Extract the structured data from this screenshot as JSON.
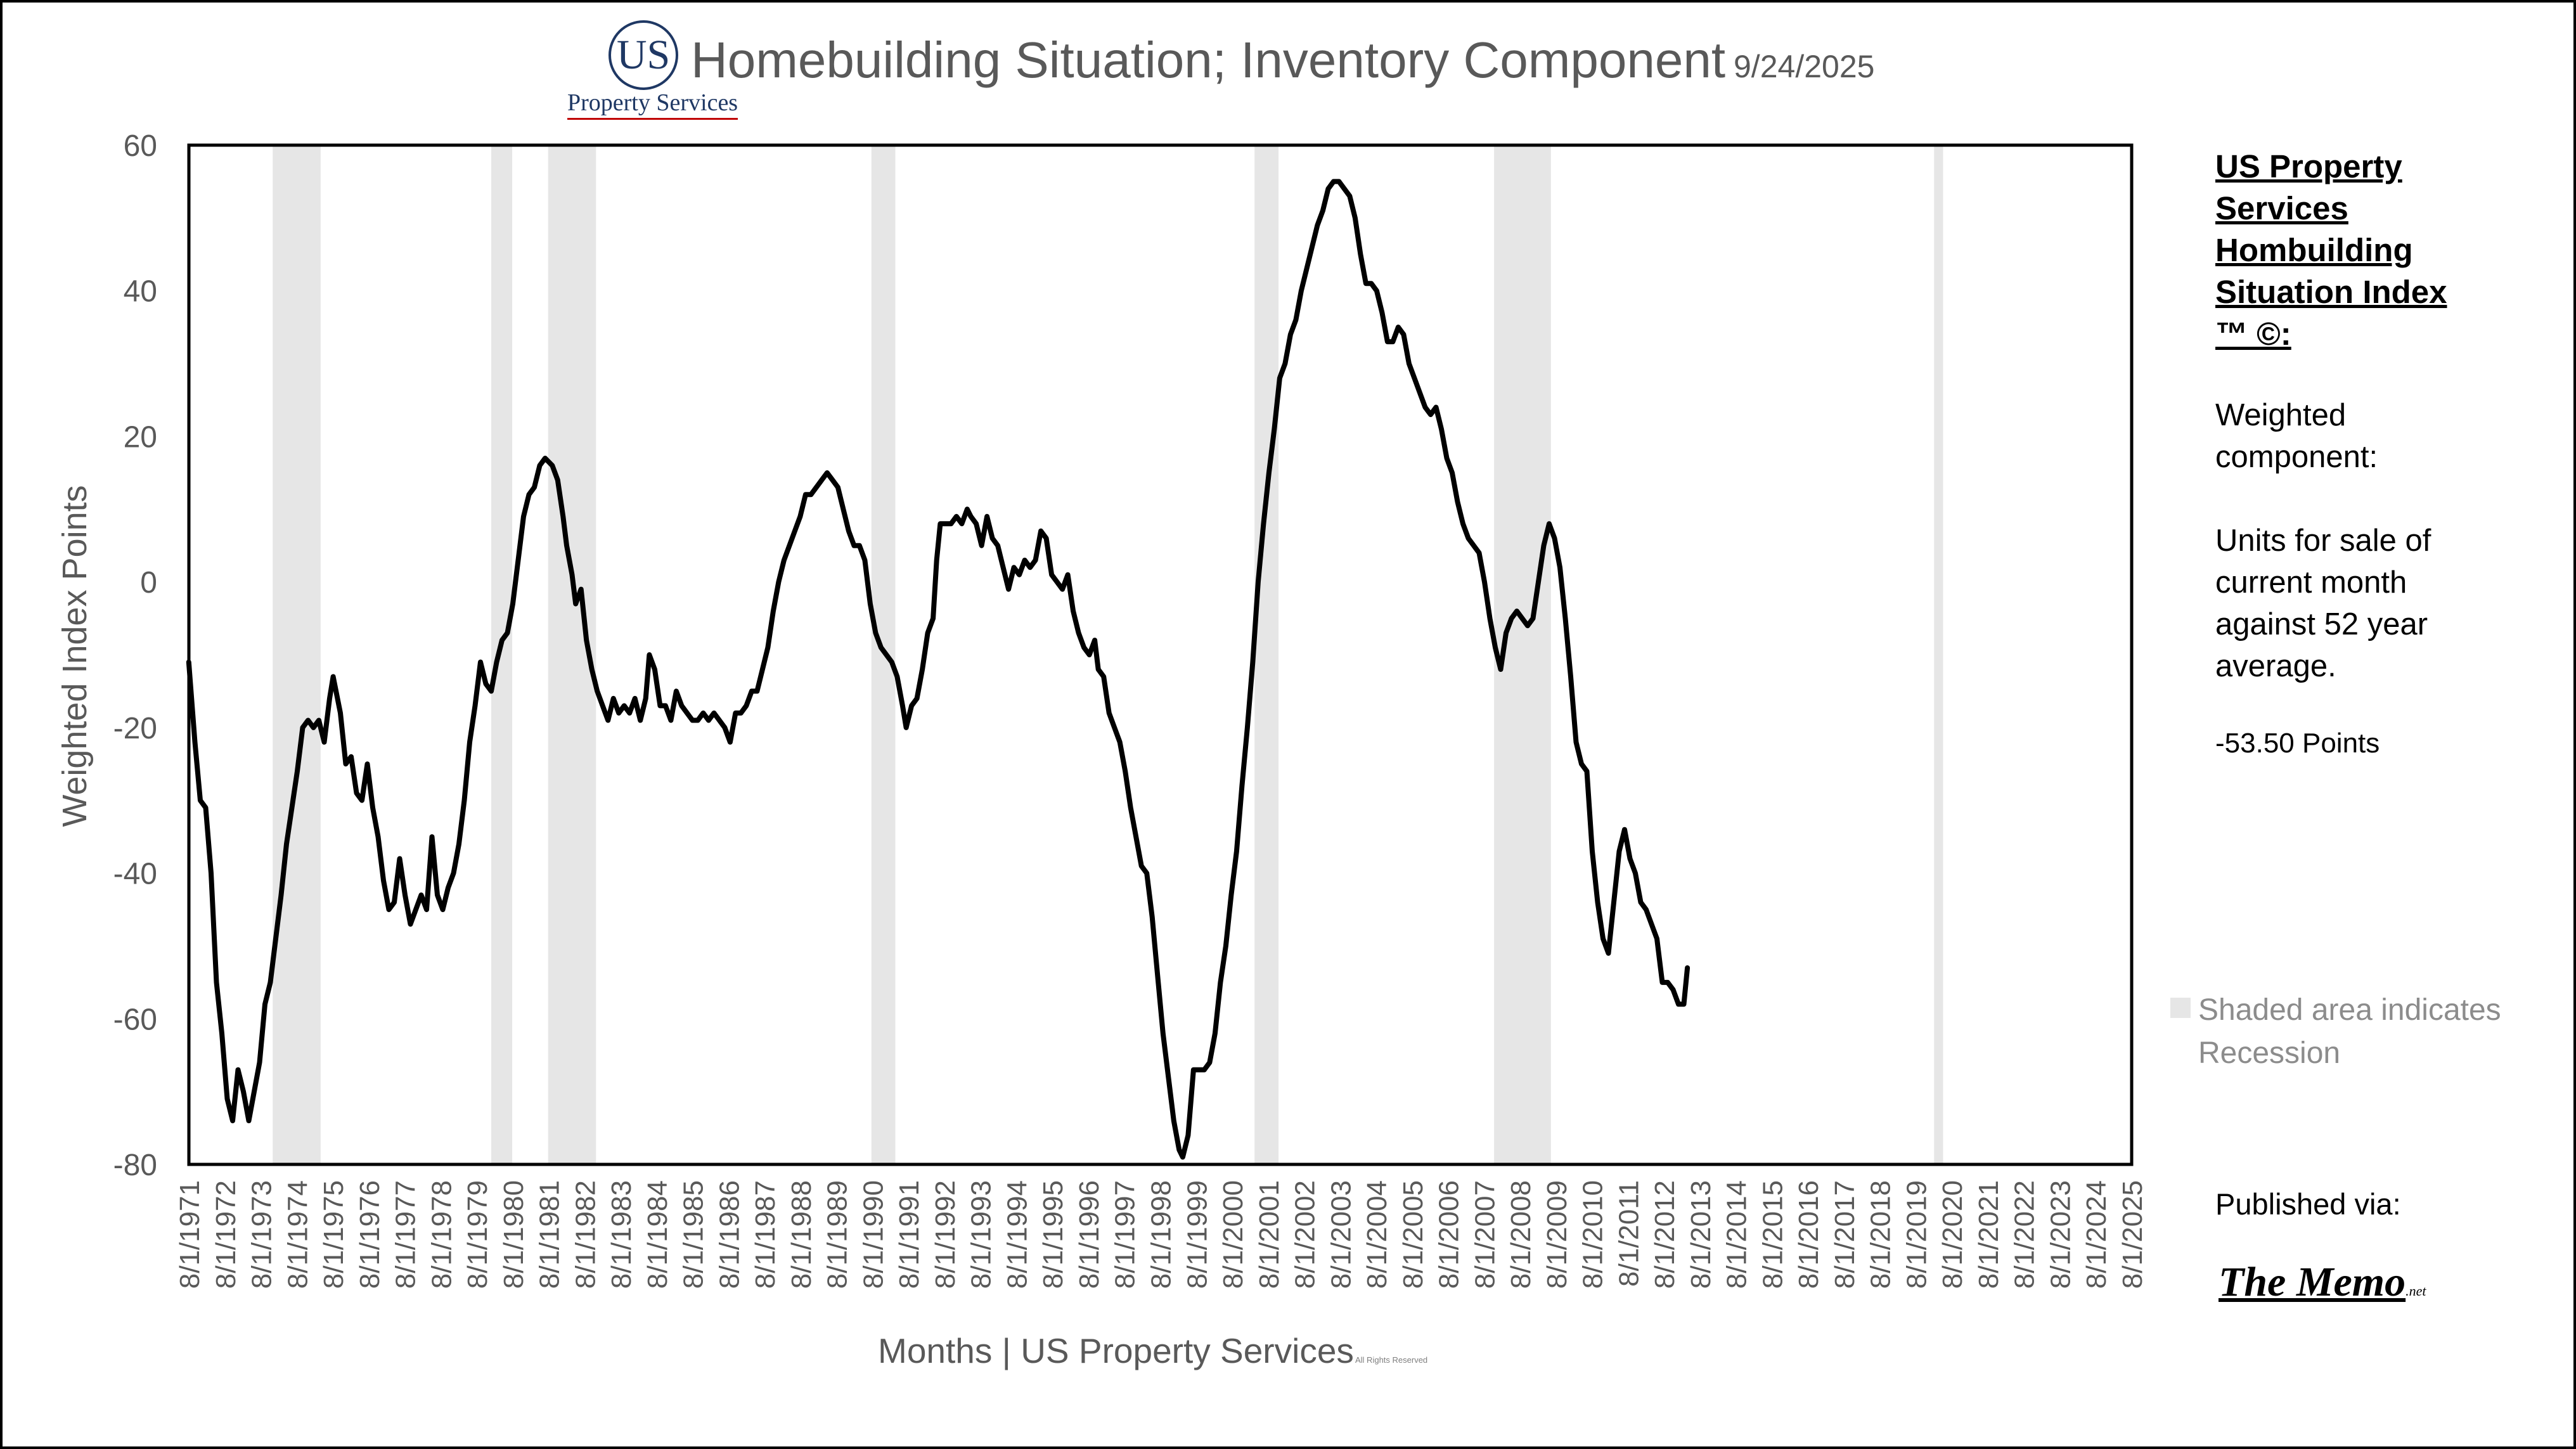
{
  "logo": {
    "mark": "US",
    "subtitle": "Property Services"
  },
  "sidebar": {
    "heading": "US Property Services Hombuilding Situation Index ™ ©:",
    "description_1": "Weighted component:",
    "description_2": "Units for sale of current month against 52 year average.",
    "current_value": "-53.50 Points",
    "published_label": "Published via:",
    "publisher": "The Memo",
    "publisher_suffix": ".net"
  },
  "legend": {
    "text": "Shaded area indicates Recession"
  },
  "colors": {
    "line": "#000000",
    "recession": "#e6e6e6",
    "axis_text": "#595959",
    "logo": "#1f3864"
  },
  "chart_data": {
    "type": "line",
    "title": "Homebuilding Situation; Inventory Component",
    "date": "9/24/2025",
    "xlabel": "Months | US Property Services",
    "xlabel_note": "All Rights Reserved",
    "ylabel": "Weighted Index Points",
    "ylim": [
      -80,
      60
    ],
    "yticks": [
      -80,
      -60,
      -40,
      -20,
      0,
      20,
      40,
      60
    ],
    "xlim": [
      1971.583,
      2025.667
    ],
    "x_tick_labels": [
      "8/1/1971",
      "8/1/1972",
      "8/1/1973",
      "8/1/1974",
      "8/1/1975",
      "8/1/1976",
      "8/1/1977",
      "8/1/1978",
      "8/1/1979",
      "8/1/1980",
      "8/1/1981",
      "8/1/1982",
      "8/1/1983",
      "8/1/1984",
      "8/1/1985",
      "8/1/1986",
      "8/1/1987",
      "8/1/1988",
      "8/1/1989",
      "8/1/1990",
      "8/1/1991",
      "8/1/1992",
      "8/1/1993",
      "8/1/1994",
      "8/1/1995",
      "8/1/1996",
      "8/1/1997",
      "8/1/1998",
      "8/1/1999",
      "8/1/2000",
      "8/1/2001",
      "8/1/2002",
      "8/1/2003",
      "8/1/2004",
      "8/1/2005",
      "8/1/2006",
      "8/1/2007",
      "8/1/2008",
      "8/1/2009",
      "8/1/2010",
      "8/1/2011",
      "8/1/2012",
      "8/1/2013",
      "8/1/2014",
      "8/1/2015",
      "8/1/2016",
      "8/1/2017",
      "8/1/2018",
      "8/1/2019",
      "8/1/2020",
      "8/1/2021",
      "8/1/2022",
      "8/1/2023",
      "8/1/2024",
      "8/1/2025"
    ],
    "grid": false,
    "legend_placement": "right",
    "recessions": [
      [
        1973.917,
        1975.25
      ],
      [
        1980.0,
        1980.583
      ],
      [
        1981.583,
        1982.917
      ],
      [
        1990.583,
        1991.25
      ],
      [
        2001.25,
        2001.917
      ],
      [
        2007.917,
        2009.5
      ],
      [
        2020.167,
        2020.417
      ]
    ],
    "series": [
      {
        "values": [
          [
            1971.58,
            -11
          ],
          [
            1971.75,
            -22
          ],
          [
            1971.9,
            -30
          ],
          [
            1972.05,
            -31
          ],
          [
            1972.2,
            -40
          ],
          [
            1972.35,
            -55
          ],
          [
            1972.5,
            -62
          ],
          [
            1972.65,
            -71
          ],
          [
            1972.8,
            -74
          ],
          [
            1972.95,
            -67
          ],
          [
            1973.1,
            -70
          ],
          [
            1973.25,
            -74
          ],
          [
            1973.4,
            -70
          ],
          [
            1973.55,
            -66
          ],
          [
            1973.7,
            -58
          ],
          [
            1973.85,
            -55
          ],
          [
            1974.0,
            -49
          ],
          [
            1974.15,
            -43
          ],
          [
            1974.3,
            -36
          ],
          [
            1974.45,
            -31
          ],
          [
            1974.6,
            -26
          ],
          [
            1974.75,
            -20
          ],
          [
            1974.9,
            -19
          ],
          [
            1975.05,
            -20
          ],
          [
            1975.2,
            -19
          ],
          [
            1975.35,
            -22
          ],
          [
            1975.5,
            -16
          ],
          [
            1975.6,
            -13
          ],
          [
            1975.8,
            -18
          ],
          [
            1975.95,
            -25
          ],
          [
            1976.1,
            -24
          ],
          [
            1976.25,
            -29
          ],
          [
            1976.4,
            -30
          ],
          [
            1976.55,
            -25
          ],
          [
            1976.7,
            -31
          ],
          [
            1976.85,
            -35
          ],
          [
            1977.0,
            -41
          ],
          [
            1977.15,
            -45
          ],
          [
            1977.3,
            -44
          ],
          [
            1977.45,
            -38
          ],
          [
            1977.6,
            -43
          ],
          [
            1977.75,
            -47
          ],
          [
            1977.9,
            -45
          ],
          [
            1978.05,
            -43
          ],
          [
            1978.2,
            -45
          ],
          [
            1978.35,
            -35
          ],
          [
            1978.5,
            -43
          ],
          [
            1978.65,
            -45
          ],
          [
            1978.8,
            -42
          ],
          [
            1978.95,
            -40
          ],
          [
            1979.1,
            -36
          ],
          [
            1979.25,
            -30
          ],
          [
            1979.4,
            -22
          ],
          [
            1979.55,
            -17
          ],
          [
            1979.7,
            -11
          ],
          [
            1979.85,
            -14
          ],
          [
            1980.0,
            -15
          ],
          [
            1980.15,
            -11
          ],
          [
            1980.3,
            -8
          ],
          [
            1980.45,
            -7
          ],
          [
            1980.6,
            -3
          ],
          [
            1980.75,
            3
          ],
          [
            1980.9,
            9
          ],
          [
            1981.05,
            12
          ],
          [
            1981.2,
            13
          ],
          [
            1981.35,
            16
          ],
          [
            1981.5,
            17
          ],
          [
            1981.7,
            16
          ],
          [
            1981.85,
            14
          ],
          [
            1982.0,
            9
          ],
          [
            1982.1,
            5
          ],
          [
            1982.25,
            1
          ],
          [
            1982.35,
            -3
          ],
          [
            1982.5,
            -1
          ],
          [
            1982.65,
            -8
          ],
          [
            1982.8,
            -12
          ],
          [
            1982.95,
            -15
          ],
          [
            1983.1,
            -17
          ],
          [
            1983.25,
            -19
          ],
          [
            1983.4,
            -16
          ],
          [
            1983.55,
            -18
          ],
          [
            1983.7,
            -17
          ],
          [
            1983.85,
            -18
          ],
          [
            1984.0,
            -16
          ],
          [
            1984.15,
            -19
          ],
          [
            1984.3,
            -16
          ],
          [
            1984.4,
            -10
          ],
          [
            1984.55,
            -12
          ],
          [
            1984.7,
            -17
          ],
          [
            1984.85,
            -17
          ],
          [
            1985.0,
            -19
          ],
          [
            1985.15,
            -15
          ],
          [
            1985.3,
            -17
          ],
          [
            1985.45,
            -18
          ],
          [
            1985.6,
            -19
          ],
          [
            1985.75,
            -19
          ],
          [
            1985.9,
            -18
          ],
          [
            1986.05,
            -19
          ],
          [
            1986.2,
            -18
          ],
          [
            1986.35,
            -19
          ],
          [
            1986.5,
            -20
          ],
          [
            1986.65,
            -22
          ],
          [
            1986.8,
            -18
          ],
          [
            1986.95,
            -18
          ],
          [
            1987.1,
            -17
          ],
          [
            1987.25,
            -15
          ],
          [
            1987.4,
            -15
          ],
          [
            1987.55,
            -12
          ],
          [
            1987.7,
            -9
          ],
          [
            1987.85,
            -4
          ],
          [
            1988.0,
            0
          ],
          [
            1988.15,
            3
          ],
          [
            1988.3,
            5
          ],
          [
            1988.45,
            7
          ],
          [
            1988.6,
            9
          ],
          [
            1988.75,
            12
          ],
          [
            1988.9,
            12
          ],
          [
            1989.05,
            13
          ],
          [
            1989.2,
            14
          ],
          [
            1989.35,
            15
          ],
          [
            1989.5,
            14
          ],
          [
            1989.65,
            13
          ],
          [
            1989.8,
            10
          ],
          [
            1989.95,
            7
          ],
          [
            1990.1,
            5
          ],
          [
            1990.25,
            5
          ],
          [
            1990.4,
            3
          ],
          [
            1990.55,
            -3
          ],
          [
            1990.7,
            -7
          ],
          [
            1990.85,
            -9
          ],
          [
            1991.0,
            -10
          ],
          [
            1991.15,
            -11
          ],
          [
            1991.3,
            -13
          ],
          [
            1991.45,
            -17
          ],
          [
            1991.55,
            -20
          ],
          [
            1991.7,
            -17
          ],
          [
            1991.85,
            -16
          ],
          [
            1992.0,
            -12
          ],
          [
            1992.15,
            -7
          ],
          [
            1992.3,
            -5
          ],
          [
            1992.4,
            3
          ],
          [
            1992.5,
            8
          ],
          [
            1992.65,
            8
          ],
          [
            1992.8,
            8
          ],
          [
            1992.95,
            9
          ],
          [
            1993.1,
            8
          ],
          [
            1993.25,
            10
          ],
          [
            1993.35,
            9
          ],
          [
            1993.5,
            8
          ],
          [
            1993.65,
            5
          ],
          [
            1993.8,
            9
          ],
          [
            1993.95,
            6
          ],
          [
            1994.1,
            5
          ],
          [
            1994.25,
            2
          ],
          [
            1994.4,
            -1
          ],
          [
            1994.55,
            2
          ],
          [
            1994.7,
            1
          ],
          [
            1994.85,
            3
          ],
          [
            1995.0,
            2
          ],
          [
            1995.15,
            3
          ],
          [
            1995.3,
            7
          ],
          [
            1995.45,
            6
          ],
          [
            1995.6,
            1
          ],
          [
            1995.75,
            0
          ],
          [
            1995.9,
            -1
          ],
          [
            1996.05,
            1
          ],
          [
            1996.2,
            -4
          ],
          [
            1996.35,
            -7
          ],
          [
            1996.5,
            -9
          ],
          [
            1996.65,
            -10
          ],
          [
            1996.8,
            -8
          ],
          [
            1996.9,
            -12
          ],
          [
            1997.05,
            -13
          ],
          [
            1997.2,
            -18
          ],
          [
            1997.35,
            -20
          ],
          [
            1997.5,
            -22
          ],
          [
            1997.65,
            -26
          ],
          [
            1997.8,
            -31
          ],
          [
            1997.95,
            -35
          ],
          [
            1998.1,
            -39
          ],
          [
            1998.25,
            -40
          ],
          [
            1998.4,
            -46
          ],
          [
            1998.55,
            -54
          ],
          [
            1998.7,
            -62
          ],
          [
            1998.85,
            -68
          ],
          [
            1999.0,
            -74
          ],
          [
            1999.15,
            -78
          ],
          [
            1999.25,
            -79
          ],
          [
            1999.4,
            -76
          ],
          [
            1999.55,
            -67
          ],
          [
            1999.7,
            -67
          ],
          [
            1999.85,
            -67
          ],
          [
            2000.0,
            -66
          ],
          [
            2000.15,
            -62
          ],
          [
            2000.3,
            -55
          ],
          [
            2000.45,
            -50
          ],
          [
            2000.6,
            -43
          ],
          [
            2000.75,
            -37
          ],
          [
            2000.9,
            -28
          ],
          [
            2001.05,
            -20
          ],
          [
            2001.2,
            -11
          ],
          [
            2001.35,
            0
          ],
          [
            2001.5,
            8
          ],
          [
            2001.65,
            15
          ],
          [
            2001.8,
            21
          ],
          [
            2001.95,
            28
          ],
          [
            2002.1,
            30
          ],
          [
            2002.25,
            34
          ],
          [
            2002.4,
            36
          ],
          [
            2002.55,
            40
          ],
          [
            2002.7,
            43
          ],
          [
            2002.85,
            46
          ],
          [
            2003.0,
            49
          ],
          [
            2003.15,
            51
          ],
          [
            2003.3,
            54
          ],
          [
            2003.45,
            55
          ],
          [
            2003.6,
            55
          ],
          [
            2003.75,
            54
          ],
          [
            2003.9,
            53
          ],
          [
            2004.05,
            50
          ],
          [
            2004.2,
            45
          ],
          [
            2004.35,
            41
          ],
          [
            2004.5,
            41
          ],
          [
            2004.65,
            40
          ],
          [
            2004.8,
            37
          ],
          [
            2004.95,
            33
          ],
          [
            2005.1,
            33
          ],
          [
            2005.25,
            35
          ],
          [
            2005.4,
            34
          ],
          [
            2005.55,
            30
          ],
          [
            2005.7,
            28
          ],
          [
            2005.85,
            26
          ],
          [
            2006.0,
            24
          ],
          [
            2006.15,
            23
          ],
          [
            2006.3,
            24
          ],
          [
            2006.45,
            21
          ],
          [
            2006.6,
            17
          ],
          [
            2006.75,
            15
          ],
          [
            2006.9,
            11
          ],
          [
            2007.05,
            8
          ],
          [
            2007.2,
            6
          ],
          [
            2007.35,
            5
          ],
          [
            2007.5,
            4
          ],
          [
            2007.65,
            0
          ],
          [
            2007.8,
            -5
          ],
          [
            2007.95,
            -9
          ],
          [
            2008.1,
            -12
          ],
          [
            2008.25,
            -7
          ],
          [
            2008.4,
            -5
          ],
          [
            2008.55,
            -4
          ],
          [
            2008.7,
            -5
          ],
          [
            2008.85,
            -6
          ],
          [
            2009.0,
            -5
          ],
          [
            2009.15,
            0
          ],
          [
            2009.3,
            5
          ],
          [
            2009.45,
            8
          ],
          [
            2009.6,
            6
          ],
          [
            2009.75,
            2
          ],
          [
            2009.9,
            -5
          ],
          [
            2010.05,
            -13
          ],
          [
            2010.2,
            -22
          ],
          [
            2010.35,
            -25
          ],
          [
            2010.5,
            -26
          ],
          [
            2010.65,
            -37
          ],
          [
            2010.8,
            -44
          ],
          [
            2010.95,
            -49
          ],
          [
            2011.1,
            -51
          ],
          [
            2011.25,
            -44
          ],
          [
            2011.4,
            -37
          ],
          [
            2011.55,
            -34
          ],
          [
            2011.7,
            -38
          ],
          [
            2011.85,
            -40
          ],
          [
            2012.0,
            -44
          ],
          [
            2012.15,
            -45
          ],
          [
            2012.3,
            -47
          ],
          [
            2012.45,
            -49
          ],
          [
            2012.6,
            -55
          ],
          [
            2012.75,
            -55
          ],
          [
            2012.9,
            -56
          ],
          [
            2013.05,
            -58
          ],
          [
            2013.2,
            -58
          ],
          [
            2013.3,
            -53
          ]
        ]
      }
    ]
  }
}
